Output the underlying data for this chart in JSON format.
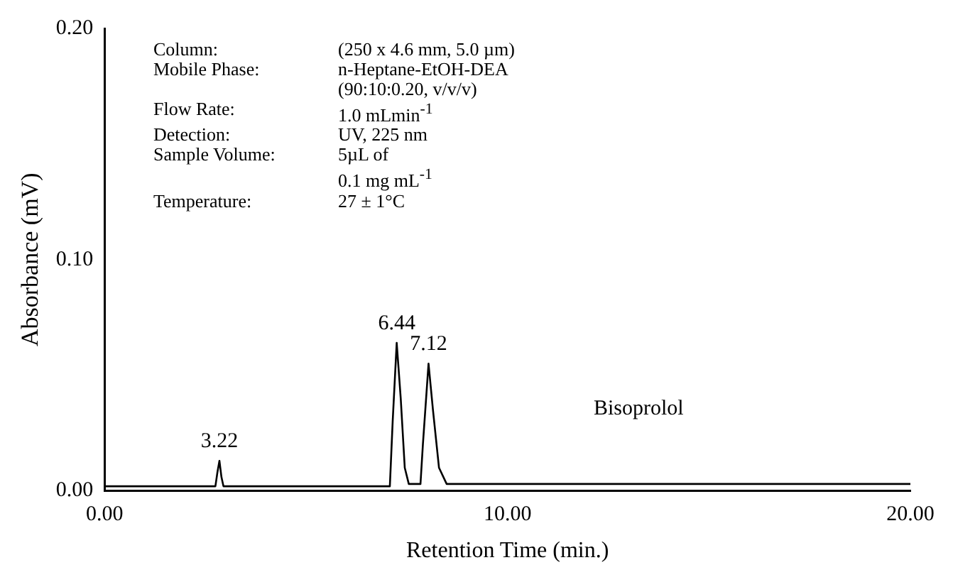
{
  "chart_data": {
    "type": "line",
    "xlabel": "Retention Time (min.)",
    "ylabel": "Absorbance (mV)",
    "x": [
      0,
      2.75,
      2.8,
      2.85,
      2.9,
      2.95,
      7.08,
      7.15,
      7.25,
      7.35,
      7.45,
      7.55,
      7.84,
      7.9,
      8.04,
      8.15,
      8.3,
      8.49,
      20
    ],
    "series": [
      {
        "color": "#000000",
        "values": [
          0.002,
          0.002,
          0.008,
          0.013,
          0.006,
          0.002,
          0.002,
          0.03,
          0.064,
          0.04,
          0.01,
          0.003,
          0.003,
          0.02,
          0.055,
          0.035,
          0.01,
          0.003,
          0.003
        ]
      }
    ],
    "xlim": [
      0,
      20
    ],
    "xticks": [
      {
        "value": 0,
        "label": "0.00"
      },
      {
        "value": 10,
        "label": "10.00"
      },
      {
        "value": 20,
        "label": "20.00"
      }
    ],
    "ylim": [
      0,
      0.2
    ],
    "yticks": [
      {
        "value": 0,
        "label": "0.00"
      },
      {
        "value": 0.1,
        "label": "0.10"
      },
      {
        "value": 0.2,
        "label": "0.20"
      }
    ],
    "grid": false,
    "legend": false,
    "marker": "none",
    "line_style": "solid",
    "annotations": [
      {
        "text": "3.22",
        "x": 2.85,
        "y": 0.013
      },
      {
        "text": "6.44",
        "x": 7.25,
        "y": 0.064
      },
      {
        "text": "7.12",
        "x": 8.04,
        "y": 0.055
      },
      "Bisoprolol",
      "Column:\t(250 x 4.6 mm, 5.0 µm)",
      "Mobile Phase:\tn-Heptane-EtOH-DEA",
      "\t(90:10:0.20, v/v/v)",
      "Flow Rate:\t1.0 mLmin$^{-1}$",
      "Detection:\tUV, 225 nm",
      "Sample Volume:\t5µL of",
      "\t0.1 mg mL$^{-1}$",
      "Temperature:\t27 ± 1°C"
    ]
  }
}
